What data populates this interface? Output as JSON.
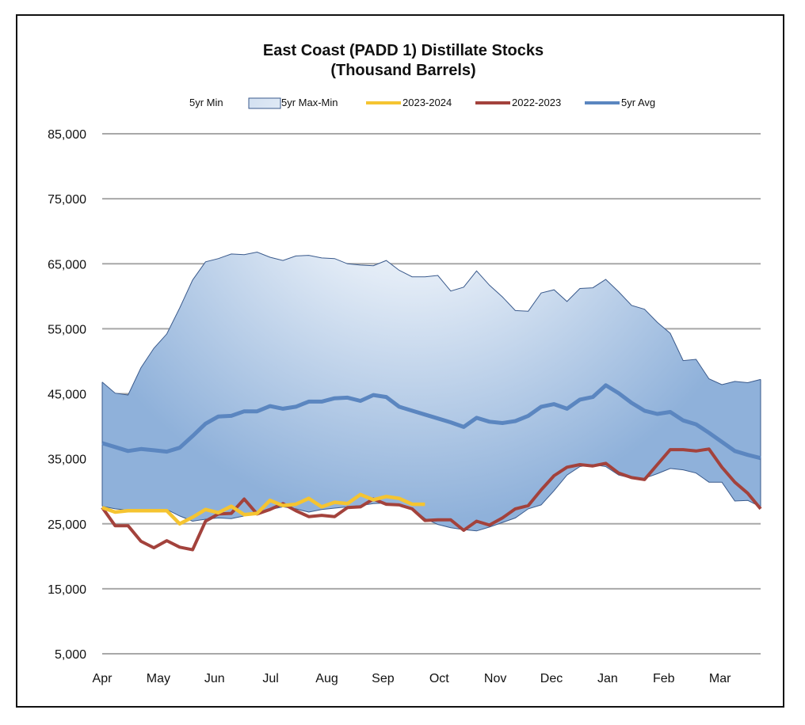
{
  "chart_data": {
    "type": "area",
    "title": [
      "East Coast (PADD 1) Distillate Stocks",
      "(Thousand Barrels)"
    ],
    "xlabel": "",
    "ylabel": "",
    "ylim": [
      5000,
      85000
    ],
    "yticks": [
      85000,
      75000,
      65000,
      55000,
      45000,
      35000,
      25000,
      15000,
      5000
    ],
    "ytick_labels": [
      "85,000",
      "75,000",
      "65,000",
      "55,000",
      "45,000",
      "35,000",
      "25,000",
      "15,000",
      "5,000"
    ],
    "xlim": [
      0,
      51
    ],
    "months": [
      "Apr",
      "May",
      "Jun",
      "Jul",
      "Aug",
      "Sep",
      "Oct",
      "Nov",
      "Dec",
      "Jan",
      "Feb",
      "Mar"
    ],
    "month_positions": [
      0,
      4.35,
      8.7,
      13.05,
      17.4,
      21.75,
      26.1,
      30.45,
      34.8,
      39.15,
      43.5,
      47.85
    ],
    "legend": [
      "5yr Min",
      "5yr Max-Min",
      "2023-2024",
      "2022-2023",
      "5yr Avg"
    ],
    "colors": {
      "band_fill": "#8fb1da",
      "band_center": "#ffffff",
      "band_edge": "#3a5a8c",
      "y2023": "#f5c431",
      "y2022": "#a3423c",
      "avg": "#5b86c0",
      "grid": "#a8a8a8"
    },
    "series": [
      {
        "name": "5yr Max",
        "values": [
          46800,
          45100,
          44800,
          49000,
          52000,
          54200,
          58200,
          62500,
          65300,
          65800,
          66500,
          66400,
          66800,
          66000,
          65500,
          66200,
          66300,
          65900,
          65800,
          65000,
          64800,
          64700,
          65500,
          64000,
          63000,
          63000,
          63200,
          60800,
          61400,
          63900,
          61700,
          59900,
          57800,
          57700,
          60500,
          61000,
          59200,
          61200,
          61300,
          62600,
          60700,
          58600,
          58000,
          56000,
          54300,
          50100,
          50300,
          47300,
          46400,
          46900,
          46700,
          47200
        ]
      },
      {
        "name": "5yr Min",
        "values": [
          27700,
          27300,
          27100,
          26900,
          27000,
          27200,
          26200,
          25400,
          25700,
          25900,
          25800,
          26200,
          26700,
          27200,
          27600,
          27300,
          26800,
          27200,
          27400,
          27600,
          27800,
          28100,
          28200,
          27900,
          27400,
          25800,
          24900,
          24400,
          24100,
          23900,
          24500,
          25200,
          25900,
          27300,
          27900,
          30100,
          32500,
          33800,
          34100,
          33800,
          32500,
          32000,
          32000,
          32700,
          33500,
          33300,
          32800,
          31400,
          31400,
          28500,
          28600,
          27600
        ]
      },
      {
        "name": "2023-2024",
        "values": [
          27500,
          26800,
          27000,
          27000,
          27000,
          27000,
          25000,
          26000,
          27200,
          26700,
          27700,
          26400,
          26600,
          28600,
          27800,
          28000,
          28900,
          27600,
          28300,
          28100,
          29500,
          28700,
          29200,
          28900,
          28000,
          28000
        ]
      },
      {
        "name": "2022-2023",
        "values": [
          27500,
          24700,
          24700,
          22300,
          21300,
          22400,
          21400,
          21000,
          25400,
          26500,
          26600,
          28800,
          26500,
          27200,
          28100,
          27000,
          26100,
          26300,
          26100,
          27500,
          27600,
          28800,
          28000,
          27900,
          27300,
          25500,
          25600,
          25600,
          24000,
          25400,
          24800,
          25900,
          27300,
          27800,
          30200,
          32400,
          33700,
          34100,
          33900,
          34300,
          32800,
          32100,
          31800,
          34100,
          36400,
          36400,
          36200,
          36500,
          33700,
          31400,
          29700,
          27300
        ]
      },
      {
        "name": "5yr Avg",
        "values": [
          37400,
          36800,
          36200,
          36500,
          36300,
          36100,
          36700,
          38500,
          40400,
          41500,
          41600,
          42300,
          42300,
          43100,
          42700,
          43000,
          43800,
          43800,
          44300,
          44400,
          43900,
          44800,
          44500,
          43000,
          42400,
          41800,
          41200,
          40600,
          39900,
          41300,
          40700,
          40500,
          40800,
          41600,
          43000,
          43400,
          42700,
          44100,
          44500,
          46300,
          45100,
          43600,
          42400,
          41900,
          42200,
          40900,
          40300,
          39000,
          37600,
          36200,
          35600,
          35100
        ]
      }
    ]
  }
}
